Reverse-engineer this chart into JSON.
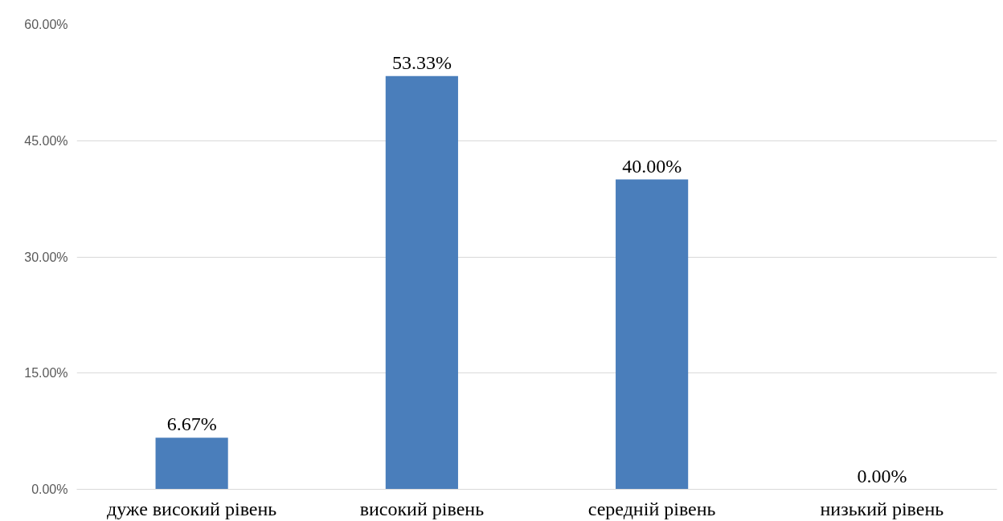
{
  "chart_data": {
    "type": "bar",
    "categories": [
      "дуже високий рівень",
      "високий рівень",
      "середній рівень",
      "низький рівень"
    ],
    "values": [
      6.67,
      53.33,
      40.0,
      0.0
    ],
    "value_labels": [
      "6.67%",
      "53.33%",
      "40.00%",
      "0.00%"
    ],
    "color": "#4a7ebb",
    "ylim": [
      0,
      60
    ],
    "yticks": [
      {
        "value": 0,
        "label": "0.00%"
      },
      {
        "value": 15,
        "label": "15.00%"
      },
      {
        "value": 30,
        "label": "30.00%"
      },
      {
        "value": 45,
        "label": "45.00%"
      },
      {
        "value": 60,
        "label": "60.00%"
      }
    ],
    "grid": "y"
  }
}
